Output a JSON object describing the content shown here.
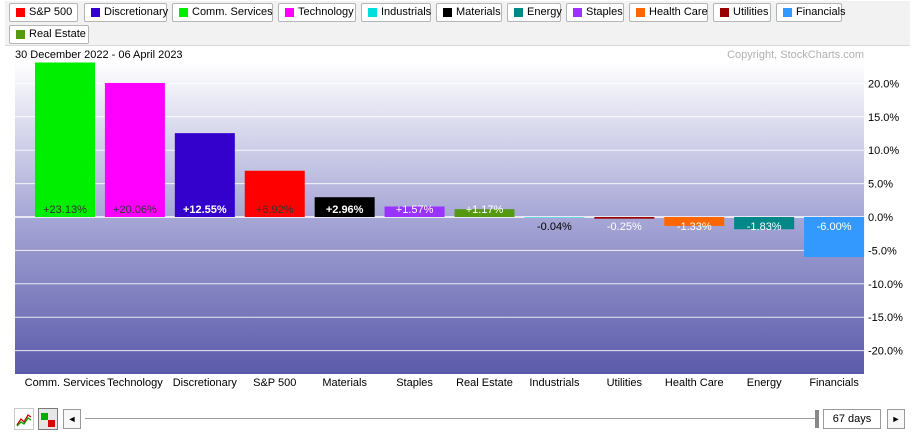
{
  "legend": [
    {
      "label": "S&P 500",
      "color": "#ff0000"
    },
    {
      "label": "Discretionary",
      "color": "#3300cc"
    },
    {
      "label": "Comm. Services",
      "color": "#00ee00"
    },
    {
      "label": "Technology",
      "color": "#ff00ff"
    },
    {
      "label": "Industrials",
      "color": "#00dddd"
    },
    {
      "label": "Materials",
      "color": "#000000"
    },
    {
      "label": "Energy",
      "color": "#008888"
    },
    {
      "label": "Staples",
      "color": "#9933ff"
    },
    {
      "label": "Health Care",
      "color": "#ff6600"
    },
    {
      "label": "Utilities",
      "color": "#990000"
    },
    {
      "label": "Financials",
      "color": "#3399ff"
    },
    {
      "label": "Real Estate",
      "color": "#559911"
    }
  ],
  "chart_data": {
    "type": "bar",
    "title": "30 December 2022 - 06 April 2023",
    "copyright": "Copyright, StockCharts.com",
    "categories": [
      "Comm. Services",
      "Technology",
      "Discretionary",
      "S&P 500",
      "Materials",
      "Staples",
      "Real Estate",
      "Industrials",
      "Utilities",
      "Health Care",
      "Energy",
      "Financials"
    ],
    "values": [
      23.13,
      20.06,
      12.55,
      6.92,
      2.96,
      1.57,
      1.17,
      -0.04,
      -0.25,
      -1.33,
      -1.83,
      -6.0
    ],
    "value_labels": [
      "+23.13%",
      "+20.06%",
      "+12.55%",
      "+6.92%",
      "+2.96%",
      "+1.57%",
      "+1.17%",
      "-0.04%",
      "-0.25%",
      "-1.33%",
      "-1.83%",
      "-6.00%"
    ],
    "colors": [
      "#00ee00",
      "#ff00ff",
      "#3300cc",
      "#ff0000",
      "#000000",
      "#9933ff",
      "#559911",
      "#00dddd",
      "#990000",
      "#ff6600",
      "#008888",
      "#3399ff"
    ],
    "y_ticks": [
      "20.0%",
      "15.0%",
      "10.0%",
      "5.0%",
      "0.0%",
      "-5.0%",
      "-10.0%",
      "-15.0%",
      "-20.0%"
    ],
    "y_tick_values": [
      20,
      15,
      10,
      5,
      0,
      -5,
      -10,
      -15,
      -20
    ],
    "ylim": [
      -23.5,
      23.2
    ],
    "grid": true,
    "legend_position": "top"
  },
  "controls": {
    "prev_label": "◄",
    "next_label": "►",
    "days_label": "67 days"
  }
}
